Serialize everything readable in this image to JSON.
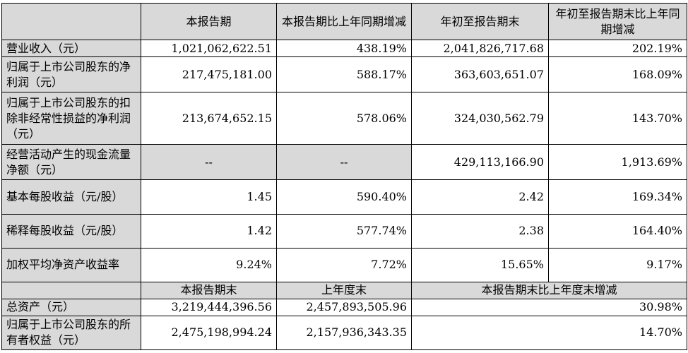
{
  "header1": [
    "",
    "本报告期",
    "本报告期比上年同期增减",
    "年初至报告期末",
    "年初至报告期末比上年同期增减"
  ],
  "rows1": [
    {
      "label": "营业收入（元）",
      "c1": "1,021,062,622.51",
      "c2": "438.19%",
      "c3": "2,041,826,717.68",
      "c4": "202.19%"
    },
    {
      "label": "归属于上市公司股东的净利润（元）",
      "c1": "217,475,181.00",
      "c2": "588.17%",
      "c3": "363,603,651.07",
      "c4": "168.09%"
    },
    {
      "label": "归属于上市公司股东的扣除非经常性损益的净利润（元）",
      "c1": "213,674,652.15",
      "c2": "578.06%",
      "c3": "324,030,562.79",
      "c4": "143.70%"
    },
    {
      "label": "经营活动产生的现金流量净额（元）",
      "c1": "--",
      "c2": "--",
      "c3": "429,113,166.90",
      "c4": "1,913.69%"
    },
    {
      "label": "基本每股收益（元/股）",
      "c1": "1.45",
      "c2": "590.40%",
      "c3": "2.42",
      "c4": "169.34%"
    },
    {
      "label": "稀释每股收益（元/股）",
      "c1": "1.42",
      "c2": "577.74%",
      "c3": "2.38",
      "c4": "164.40%"
    },
    {
      "label": "加权平均净资产收益率",
      "c1": "9.24%",
      "c2": "7.72%",
      "c3": "15.65%",
      "c4": "9.17%"
    }
  ],
  "header2": [
    "",
    "本报告期末",
    "上年度末",
    "本报告期末比上年度末增减"
  ],
  "rows2": [
    {
      "label": "总资产（元）",
      "c1": "3,219,444,396.56",
      "c2": "2,457,893,505.96",
      "c3": "30.98%"
    },
    {
      "label": "归属于上市公司股东的所有者权益（元）",
      "c1": "2,475,198,994.24",
      "c2": "2,157,936,343.35",
      "c3": "14.70%"
    }
  ]
}
